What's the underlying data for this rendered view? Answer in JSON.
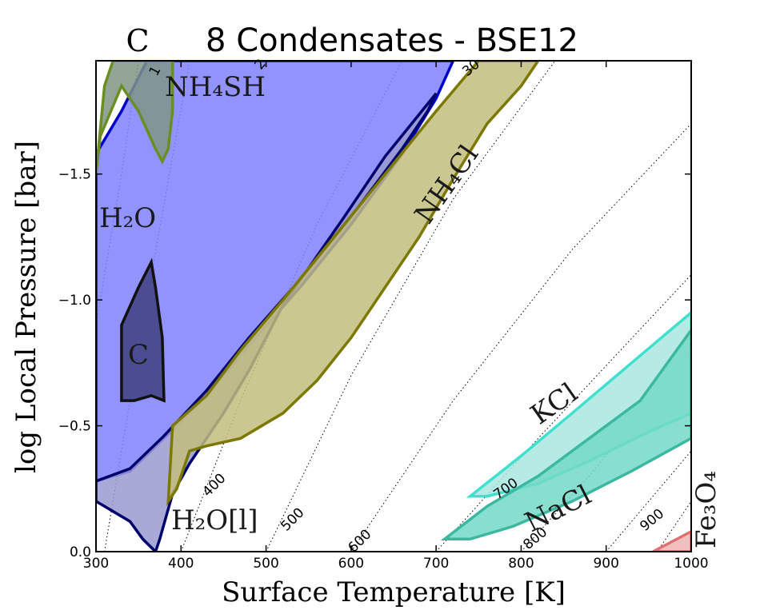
{
  "chart_data": {
    "type": "area",
    "panel_letter": "C",
    "title": "8 Condensates - BSE12",
    "xlabel": "Surface Temperature [K]",
    "ylabel": "log Local Pressure [bar]",
    "xlim": [
      300,
      1000
    ],
    "ylim": [
      0.0,
      -1.95
    ],
    "y_axis_inverted": true,
    "x_ticks": [
      300,
      400,
      500,
      600,
      700,
      800,
      900,
      1000
    ],
    "x_tick_labels": [
      "300",
      "400",
      "500",
      "600",
      "700",
      "800",
      "900",
      "1000"
    ],
    "y_ticks": [
      0.0,
      -0.5,
      -1.0,
      -1.5
    ],
    "y_tick_labels": [
      "0.0",
      "−0.5",
      "−1.0",
      "−1.5"
    ],
    "region_labels": [
      {
        "name": "h2o",
        "text": "H₂O"
      },
      {
        "name": "nh4sh",
        "text": "NH₄SH"
      },
      {
        "name": "carbon",
        "text": "C"
      },
      {
        "name": "h2o-liquid",
        "text": "H₂O[l]"
      },
      {
        "name": "nh4cl",
        "text": "NH₄Cl"
      },
      {
        "name": "kcl",
        "text": "KCl"
      },
      {
        "name": "nacl",
        "text": "NaCl"
      },
      {
        "name": "fe3o4",
        "text": "Fe₃O₄"
      }
    ],
    "contour_labels": [
      "1",
      "2",
      "30",
      "400",
      "500",
      "600",
      "700",
      "800",
      "900"
    ],
    "isotherms": [
      {
        "T0": 300,
        "label": "",
        "points": [
          [
            300,
            -0.9
          ],
          [
            330,
            -1.5
          ],
          [
            350,
            -1.95
          ]
        ]
      },
      {
        "T0": 330,
        "label": "1",
        "points": [
          [
            310,
            0.0
          ],
          [
            360,
            -1.0
          ],
          [
            410,
            -1.95
          ]
        ]
      },
      {
        "T0": 400,
        "label": "400",
        "points": [
          [
            400,
            0.0
          ],
          [
            470,
            -0.6
          ],
          [
            560,
            -1.3
          ],
          [
            660,
            -1.95
          ]
        ]
      },
      {
        "T0": 500,
        "label": "500",
        "points": [
          [
            500,
            0.0
          ],
          [
            600,
            -0.7
          ],
          [
            720,
            -1.4
          ],
          [
            840,
            -1.95
          ]
        ]
      },
      {
        "T0": 600,
        "label": "600",
        "points": [
          [
            600,
            0.0
          ],
          [
            720,
            -0.6
          ],
          [
            860,
            -1.2
          ],
          [
            1000,
            -1.7
          ]
        ]
      },
      {
        "T0": 700,
        "label": "700",
        "points": [
          [
            700,
            0.0
          ],
          [
            820,
            -0.45
          ],
          [
            1000,
            -1.1
          ]
        ]
      },
      {
        "T0": 800,
        "label": "800",
        "points": [
          [
            800,
            0.0
          ],
          [
            880,
            -0.3
          ],
          [
            1000,
            -0.8
          ]
        ]
      },
      {
        "T0": 900,
        "label": "900",
        "points": [
          [
            900,
            0.0
          ],
          [
            1000,
            -0.4
          ]
        ]
      },
      {
        "T0": 1000,
        "label": "",
        "points": [
          [
            960,
            0.0
          ],
          [
            1000,
            -0.2
          ]
        ]
      }
    ],
    "series": [
      {
        "name": "H2O",
        "fill": "#8080ff",
        "stroke": "#0000cc",
        "points": [
          [
            300,
            -0.28
          ],
          [
            300,
            -1.58
          ],
          [
            330,
            -1.75
          ],
          [
            360,
            -1.95
          ],
          [
            720,
            -1.95
          ],
          [
            700,
            -1.8
          ],
          [
            660,
            -1.58
          ],
          [
            600,
            -1.3
          ],
          [
            540,
            -1.05
          ],
          [
            480,
            -0.82
          ],
          [
            430,
            -0.62
          ],
          [
            380,
            -0.45
          ],
          [
            340,
            -0.32
          ],
          [
            300,
            -0.28
          ]
        ]
      },
      {
        "name": "H2O[l]",
        "fill": "#9a9ad0",
        "stroke": "#00006e",
        "points": [
          [
            300,
            -0.2
          ],
          [
            300,
            -0.28
          ],
          [
            340,
            -0.33
          ],
          [
            380,
            -0.46
          ],
          [
            430,
            -0.64
          ],
          [
            480,
            -0.85
          ],
          [
            540,
            -1.08
          ],
          [
            600,
            -1.33
          ],
          [
            660,
            -1.6
          ],
          [
            690,
            -1.75
          ],
          [
            700,
            -1.82
          ],
          [
            640,
            -1.57
          ],
          [
            590,
            -1.32
          ],
          [
            520,
            -0.98
          ],
          [
            480,
            -0.72
          ],
          [
            450,
            -0.55
          ],
          [
            410,
            -0.35
          ],
          [
            390,
            -0.23
          ],
          [
            375,
            -0.05
          ],
          [
            370,
            0.0
          ],
          [
            355,
            -0.05
          ],
          [
            340,
            -0.12
          ],
          [
            300,
            -0.2
          ]
        ]
      },
      {
        "name": "NH4Cl",
        "fill": "#c2bd7c",
        "stroke": "#7d7800",
        "points": [
          [
            385,
            -0.2
          ],
          [
            390,
            -0.5
          ],
          [
            430,
            -0.62
          ],
          [
            470,
            -0.8
          ],
          [
            520,
            -1.0
          ],
          [
            580,
            -1.25
          ],
          [
            640,
            -1.5
          ],
          [
            700,
            -1.75
          ],
          [
            750,
            -1.95
          ],
          [
            820,
            -1.95
          ],
          [
            800,
            -1.85
          ],
          [
            760,
            -1.7
          ],
          [
            720,
            -1.48
          ],
          [
            680,
            -1.25
          ],
          [
            640,
            -1.05
          ],
          [
            600,
            -0.85
          ],
          [
            560,
            -0.68
          ],
          [
            520,
            -0.55
          ],
          [
            470,
            -0.45
          ],
          [
            430,
            -0.42
          ],
          [
            410,
            -0.4
          ],
          [
            395,
            -0.25
          ],
          [
            385,
            -0.2
          ]
        ]
      },
      {
        "name": "NH4SH",
        "fill": "#7f9585",
        "stroke": "#6b8e23",
        "points": [
          [
            300,
            -1.5
          ],
          [
            310,
            -1.85
          ],
          [
            320,
            -1.95
          ],
          [
            390,
            -1.95
          ],
          [
            390,
            -1.75
          ],
          [
            385,
            -1.6
          ],
          [
            378,
            -1.55
          ],
          [
            370,
            -1.6
          ],
          [
            350,
            -1.75
          ],
          [
            330,
            -1.85
          ],
          [
            305,
            -1.65
          ],
          [
            300,
            -1.5
          ]
        ]
      },
      {
        "name": "C",
        "fill": "#404080",
        "stroke": "#111111",
        "points": [
          [
            330,
            -0.6
          ],
          [
            330,
            -0.9
          ],
          [
            350,
            -1.05
          ],
          [
            365,
            -1.15
          ],
          [
            370,
            -1.05
          ],
          [
            378,
            -0.85
          ],
          [
            380,
            -0.6
          ],
          [
            365,
            -0.62
          ],
          [
            345,
            -0.6
          ],
          [
            330,
            -0.6
          ]
        ]
      },
      {
        "name": "KCl",
        "fill": "#a8e8df",
        "stroke": "#40e0d0",
        "points": [
          [
            740,
            -0.22
          ],
          [
            800,
            -0.38
          ],
          [
            860,
            -0.55
          ],
          [
            930,
            -0.75
          ],
          [
            1000,
            -0.95
          ],
          [
            1000,
            -0.55
          ],
          [
            940,
            -0.46
          ],
          [
            880,
            -0.36
          ],
          [
            820,
            -0.27
          ],
          [
            760,
            -0.22
          ],
          [
            740,
            -0.22
          ]
        ]
      },
      {
        "name": "NaCl",
        "fill": "#73d9c7",
        "stroke": "#3cb8a0",
        "points": [
          [
            710,
            -0.05
          ],
          [
            760,
            -0.18
          ],
          [
            820,
            -0.3
          ],
          [
            880,
            -0.45
          ],
          [
            940,
            -0.6
          ],
          [
            1000,
            -0.88
          ],
          [
            1000,
            -0.45
          ],
          [
            930,
            -0.32
          ],
          [
            860,
            -0.2
          ],
          [
            790,
            -0.1
          ],
          [
            740,
            -0.05
          ],
          [
            710,
            -0.05
          ]
        ]
      },
      {
        "name": "Fe3O4",
        "fill": "#f0b4b4",
        "stroke": "#e07070",
        "points": [
          [
            955,
            0.0
          ],
          [
            1000,
            -0.08
          ],
          [
            1000,
            0.0
          ],
          [
            955,
            0.0
          ]
        ]
      }
    ]
  }
}
